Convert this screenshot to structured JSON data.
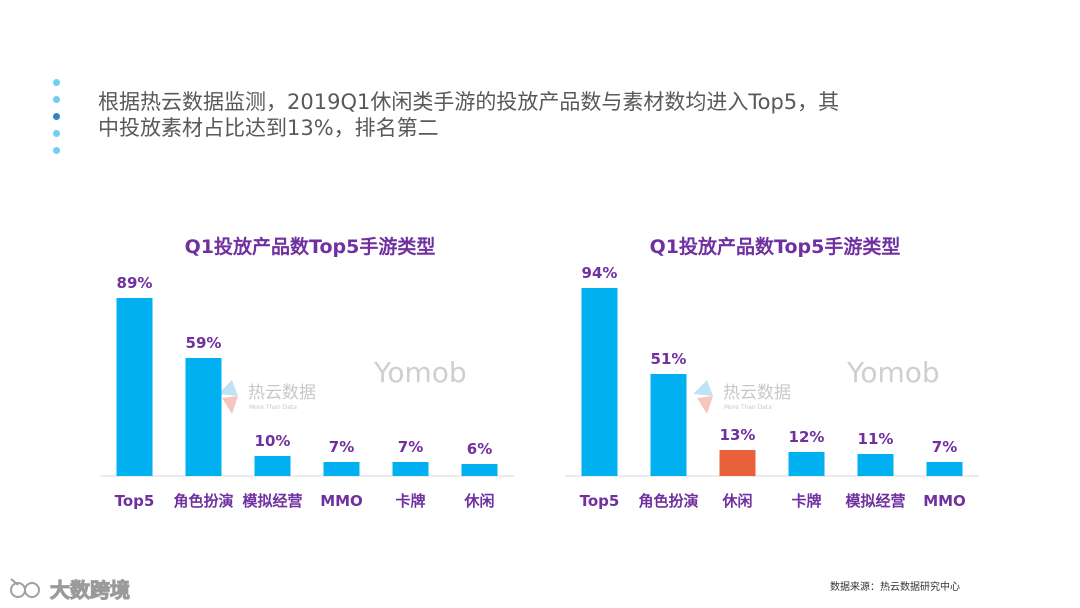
{
  "headline": "根据热云数据监测，2019Q1休闲类手游的投放产品数与素材数均进入Top5，其中投放素材占比达到13%，排名第二",
  "colors": {
    "bar": "#00B0F0",
    "highlight": "#E8603C",
    "label": "#7030A0",
    "dot_light": "#6ECFF6",
    "dot_dark": "#2E86C8"
  },
  "watermarks": {
    "reyun_cn": "热云数据",
    "reyun_en": "More Than Data",
    "yomob": "Yomob"
  },
  "source": "数据来源：热云数据研究中心",
  "brand": "大数跨境",
  "chart_data": [
    {
      "type": "bar",
      "title": "Q1投放产品数Top5手游类型",
      "categories": [
        "Top5",
        "角色扮演",
        "模拟经营",
        "MMO",
        "卡牌",
        "休闲"
      ],
      "values": [
        89,
        59,
        10,
        7,
        7,
        6
      ],
      "value_labels": [
        "89%",
        "59%",
        "10%",
        "7%",
        "7%",
        "6%"
      ],
      "highlight_index": -1,
      "ylim": [
        0,
        100
      ]
    },
    {
      "type": "bar",
      "title": "Q1投放产品数Top5手游类型",
      "categories": [
        "Top5",
        "角色扮演",
        "休闲",
        "卡牌",
        "模拟经营",
        "MMO"
      ],
      "values": [
        94,
        51,
        13,
        12,
        11,
        7
      ],
      "value_labels": [
        "94%",
        "51%",
        "13%",
        "12%",
        "11%",
        "7%"
      ],
      "highlight_index": 2,
      "ylim": [
        0,
        100
      ]
    }
  ]
}
